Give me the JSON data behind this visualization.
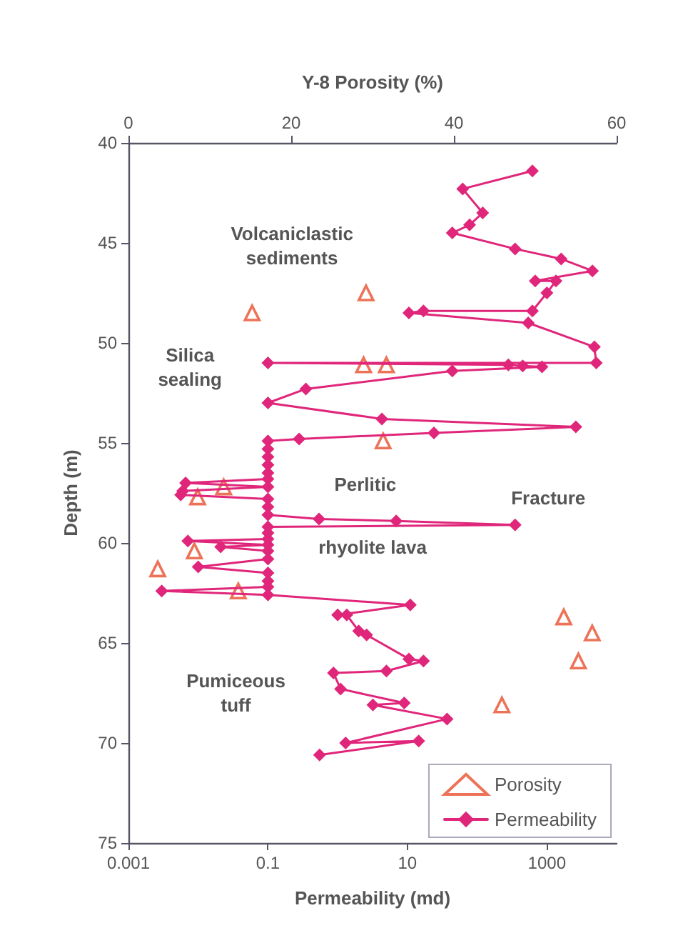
{
  "chart_data": {
    "type": "line",
    "x2label": "Y-8 Porosity (%)",
    "xlabel": "Permeability (md)",
    "ylabel": "Depth (m)",
    "annotations": [
      "Volcaniclastic sediments",
      "Silica sealing",
      "Perlitic",
      "Fracture",
      "rhyolite lava",
      "Pumiceous tuff"
    ],
    "log": "x",
    "xlim": [
      0.001,
      10000
    ],
    "xticks": [
      0.001,
      0.1,
      10,
      1000
    ],
    "x2lim": [
      0,
      60
    ],
    "x2ticks": [
      0,
      20,
      40,
      60
    ],
    "ylim": [
      75,
      40
    ],
    "yticks": [
      40,
      45,
      50,
      55,
      60,
      65,
      70,
      75
    ],
    "grid": false,
    "legend": "bottom right",
    "series": [
      {
        "name": "Porosity",
        "type": "scatter",
        "axis": "x2",
        "marker": "triangle",
        "color": "#e8502e",
        "x": [
          29.2,
          15.2,
          28.9,
          31.7,
          31.3,
          11.7,
          8.5,
          8.1,
          3.6,
          13.5,
          53.5,
          57.0,
          55.3,
          45.9
        ],
        "values": [
          47.5,
          48.5,
          51.1,
          51.1,
          54.9,
          57.2,
          57.7,
          60.4,
          61.3,
          62.4,
          63.7,
          64.5,
          65.9,
          68.1
        ]
      },
      {
        "name": "Permeability",
        "marker": "diamond",
        "line_style": "solid",
        "color": "#e0267a",
        "x": [
          620,
          62,
          120,
          78,
          44,
          350,
          1600,
          4500,
          680,
          1350,
          1000,
          620,
          17,
          10.5,
          540,
          4800,
          5100,
          0.1,
          280,
          450,
          850,
          44,
          0.35,
          0.1,
          4.3,
          2600,
          24,
          0.28,
          0.1,
          0.1,
          0.1,
          0.1,
          0.1,
          0.1,
          0.0066,
          0.1,
          0.006,
          0.0056,
          0.1,
          0.1,
          0.1,
          0.54,
          6.9,
          350,
          0.1,
          0.1,
          0.1,
          0.0071,
          0.1,
          0.021,
          0.1,
          0.1,
          0.01,
          0.1,
          0.1,
          0.1,
          0.003,
          0.1,
          11,
          1,
          1.35,
          2,
          2.6,
          10.5,
          17,
          5,
          0.87,
          1.1,
          9,
          3.2,
          37,
          1.3,
          14.5,
          0.55
        ],
        "values": [
          41.4,
          42.3,
          43.5,
          44.1,
          44.5,
          45.3,
          45.8,
          46.4,
          46.9,
          46.9,
          47.5,
          48.4,
          48.4,
          48.5,
          49.0,
          50.2,
          51.0,
          51.0,
          51.1,
          51.15,
          51.2,
          51.4,
          52.3,
          53.0,
          53.8,
          54.2,
          54.5,
          54.8,
          54.9,
          55.3,
          55.7,
          56.1,
          56.5,
          56.8,
          57.0,
          57.2,
          57.4,
          57.6,
          57.8,
          58.2,
          58.6,
          58.8,
          58.9,
          59.1,
          59.2,
          59.5,
          59.8,
          59.9,
          60.1,
          60.2,
          60.4,
          60.8,
          61.2,
          61.5,
          61.9,
          62.2,
          62.4,
          62.6,
          63.1,
          63.6,
          63.6,
          64.4,
          64.6,
          65.8,
          65.9,
          66.4,
          66.5,
          67.3,
          68.0,
          68.1,
          68.8,
          70.0,
          69.9,
          70.6
        ]
      }
    ]
  }
}
